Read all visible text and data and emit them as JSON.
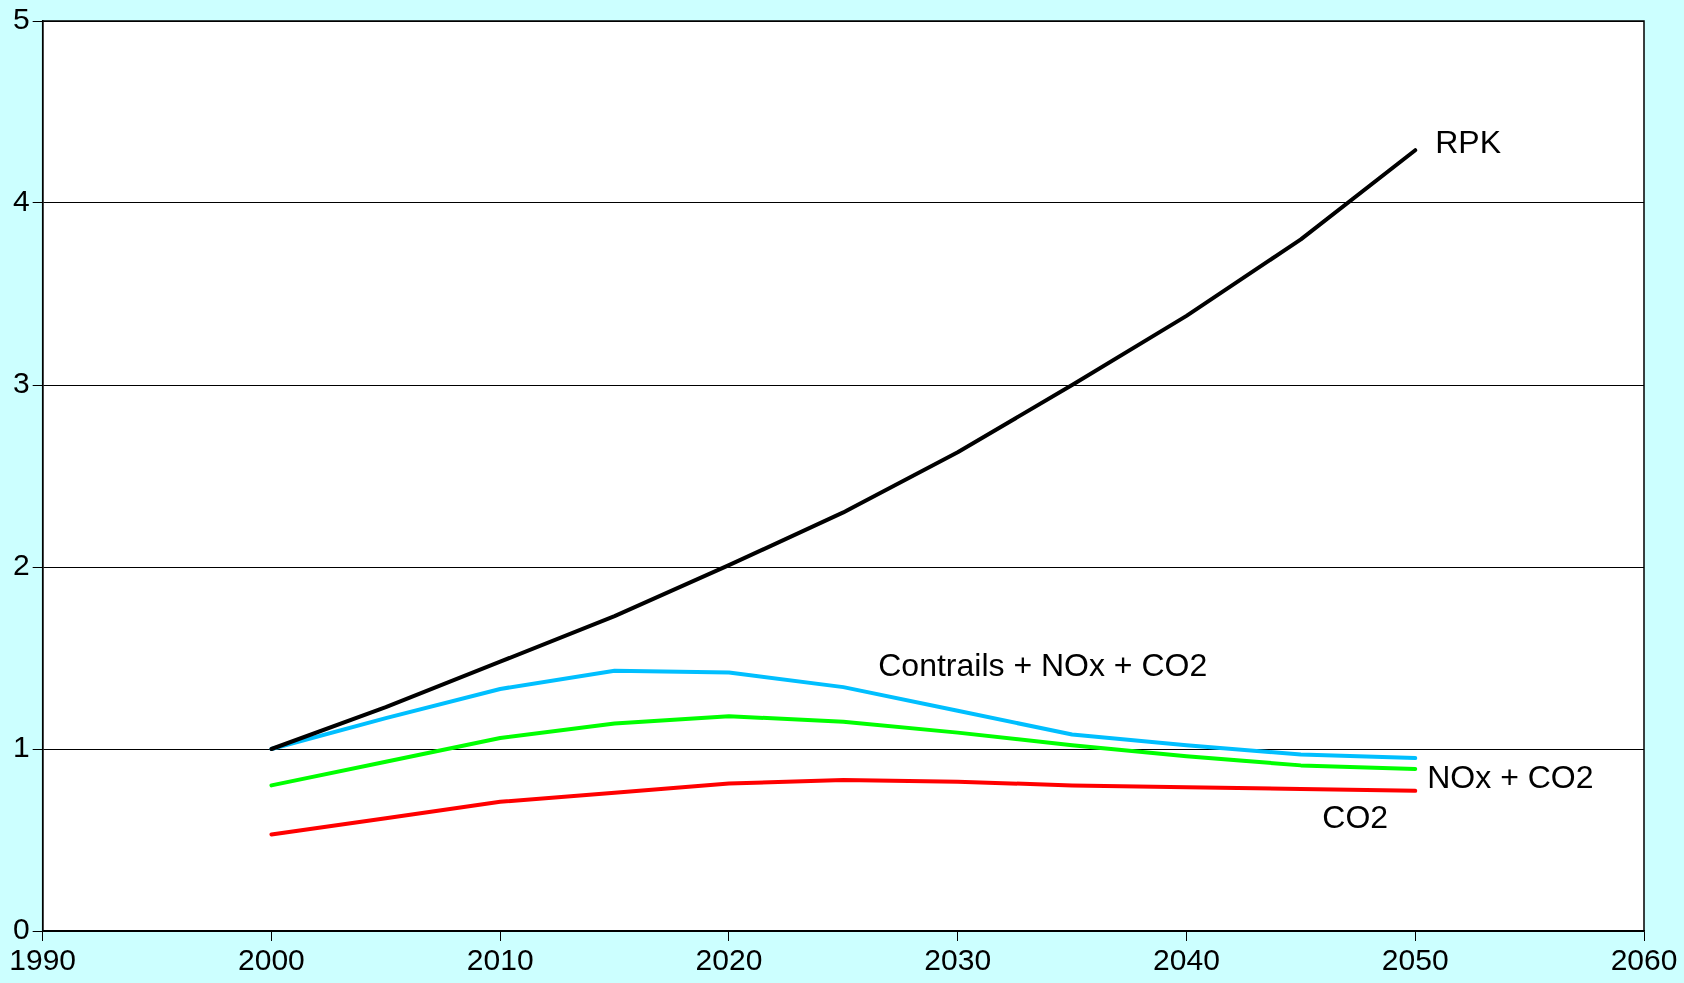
{
  "chart_data": {
    "type": "line",
    "x": [
      2000,
      2005,
      2010,
      2015,
      2020,
      2025,
      2030,
      2035,
      2040,
      2045,
      2050
    ],
    "series": [
      {
        "name": "RPK",
        "color": "#000000",
        "values": [
          1.0,
          1.23,
          1.48,
          1.73,
          2.01,
          2.3,
          2.63,
          3.0,
          3.38,
          3.8,
          4.29
        ]
      },
      {
        "name": "Contrails + NOx + CO2",
        "color": "#00bfff",
        "values": [
          1.0,
          1.17,
          1.33,
          1.43,
          1.42,
          1.34,
          1.21,
          1.08,
          1.02,
          0.97,
          0.95
        ]
      },
      {
        "name": "NOx + CO2",
        "color": "#00ff00",
        "values": [
          0.8,
          0.93,
          1.06,
          1.14,
          1.18,
          1.15,
          1.09,
          1.02,
          0.96,
          0.91,
          0.89
        ]
      },
      {
        "name": "CO2",
        "color": "#ff0000",
        "values": [
          0.53,
          0.62,
          0.71,
          0.76,
          0.81,
          0.83,
          0.82,
          0.8,
          0.79,
          0.78,
          0.77
        ]
      }
    ],
    "xlim": [
      1990,
      2060
    ],
    "xticks": [
      1990,
      2000,
      2010,
      2020,
      2030,
      2040,
      2050,
      2060
    ],
    "ylim": [
      0,
      5
    ],
    "yticks": [
      0,
      1,
      2,
      3,
      4,
      5
    ],
    "grid": "y",
    "legend": false,
    "marker": "none",
    "line_style": "solid"
  }
}
